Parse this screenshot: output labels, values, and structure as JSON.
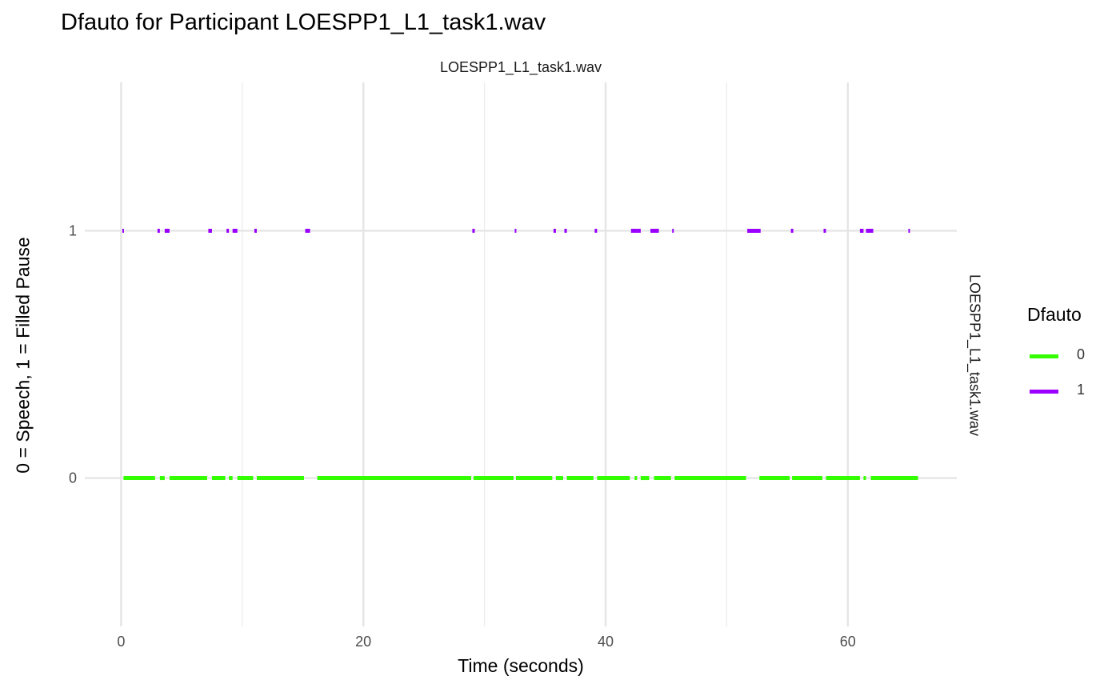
{
  "chart_data": {
    "type": "line",
    "title": "Dfauto for Participant LOESPP1_L1_task1.wav",
    "facet_label_top": "LOESPP1_L1_task1.wav",
    "facet_label_right": "LOESPP1_L1_task1.wav",
    "xlabel": "Time (seconds)",
    "ylabel": "0 = Speech, 1 = Filled Pause",
    "xlim": [
      -3,
      69
    ],
    "ylim": [
      -0.6,
      1.6
    ],
    "x_ticks": [
      0,
      20,
      40,
      60
    ],
    "x_minor_ticks": [
      10,
      30,
      50
    ],
    "y_ticks": [
      0,
      1
    ],
    "grid": true,
    "legend": {
      "title": "Dfauto",
      "position": "right",
      "entries": [
        {
          "label": "0",
          "color": "#33ff00"
        },
        {
          "label": "1",
          "color": "#9900ff"
        }
      ]
    },
    "series": [
      {
        "name": "0",
        "y": 0,
        "color": "#33ff00",
        "segments": [
          [
            0.2,
            2.8
          ],
          [
            3.2,
            3.6
          ],
          [
            4.0,
            7.1
          ],
          [
            7.5,
            8.6
          ],
          [
            8.9,
            9.2
          ],
          [
            9.6,
            10.9
          ],
          [
            11.2,
            15.1
          ],
          [
            16.2,
            28.9
          ],
          [
            29.1,
            32.4
          ],
          [
            32.6,
            35.6
          ],
          [
            35.9,
            36.5
          ],
          [
            36.8,
            39.0
          ],
          [
            39.3,
            42.0
          ],
          [
            42.4,
            42.6
          ],
          [
            42.9,
            43.6
          ],
          [
            44.0,
            45.4
          ],
          [
            45.7,
            51.6
          ],
          [
            52.7,
            55.2
          ],
          [
            55.4,
            57.9
          ],
          [
            58.2,
            61.0
          ],
          [
            61.3,
            61.5
          ],
          [
            61.9,
            65.8
          ]
        ]
      },
      {
        "name": "1",
        "y": 1,
        "color": "#9900ff",
        "segments": [
          [
            0.1,
            0.2
          ],
          [
            3.0,
            3.2
          ],
          [
            3.6,
            4.0
          ],
          [
            7.2,
            7.5
          ],
          [
            8.7,
            8.9
          ],
          [
            9.2,
            9.6
          ],
          [
            11.0,
            11.2
          ],
          [
            15.2,
            15.6
          ],
          [
            29.0,
            29.2
          ],
          [
            32.5,
            32.6
          ],
          [
            35.7,
            35.9
          ],
          [
            36.6,
            36.8
          ],
          [
            39.1,
            39.3
          ],
          [
            42.1,
            42.6
          ],
          [
            42.6,
            42.9
          ],
          [
            43.7,
            44.4
          ],
          [
            45.5,
            45.6
          ],
          [
            51.7,
            52.8
          ],
          [
            55.3,
            55.5
          ],
          [
            58.0,
            58.2
          ],
          [
            61.0,
            61.3
          ],
          [
            61.5,
            62.1
          ],
          [
            65.0,
            65.1
          ]
        ]
      }
    ]
  }
}
